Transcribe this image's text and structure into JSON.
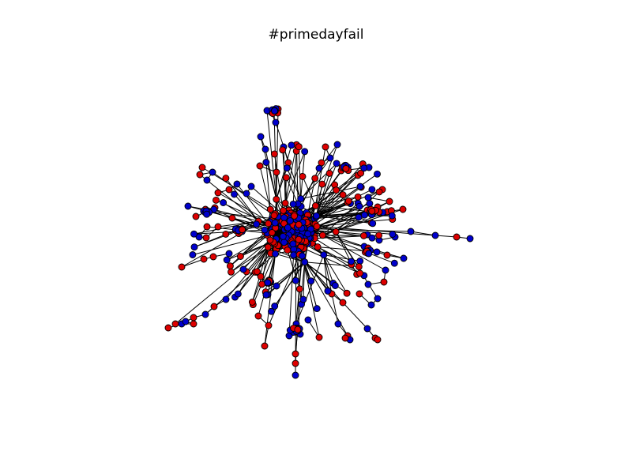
{
  "title": "#primedayfail",
  "node_colors": {
    "group_a": "#dd0000",
    "group_b": "#0000cc",
    "stroke": "#000000",
    "edge": "#000000"
  }
}
